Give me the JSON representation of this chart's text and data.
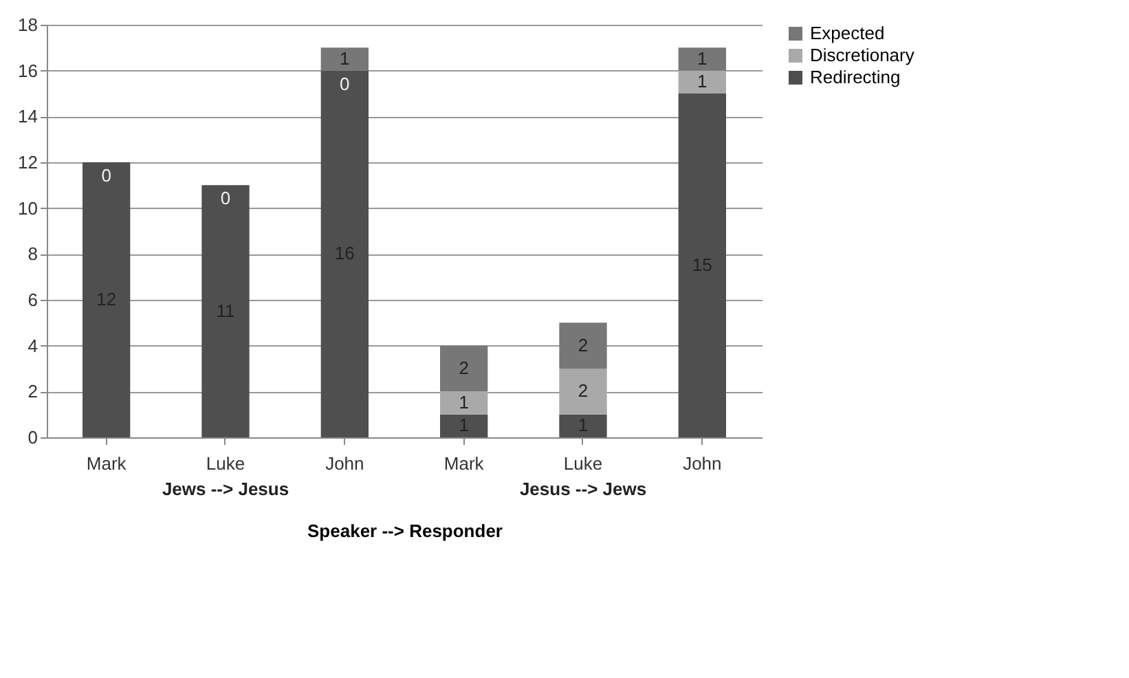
{
  "chart_data": {
    "type": "bar",
    "stacked": true,
    "categories": [
      "Mark",
      "Luke",
      "John",
      "Mark",
      "Luke",
      "John"
    ],
    "xlabel": "Speaker --> Responder",
    "annotations": [
      "Jews --> Jesus",
      "Jesus --> Jews"
    ],
    "series": [
      {
        "name": "Redirecting",
        "color": "#4f4f4f",
        "values": [
          12,
          11,
          16,
          1,
          1,
          15
        ],
        "value_labels": [
          "12",
          "11",
          "16",
          "1",
          "1",
          "15"
        ]
      },
      {
        "name": "Discretionary",
        "color": "#a9a9a9",
        "values": [
          0,
          0,
          0,
          1,
          2,
          1
        ],
        "value_labels": [
          "0",
          "0",
          "0",
          "1",
          "2",
          "1"
        ]
      },
      {
        "name": "Expected",
        "color": "#777777",
        "values": [
          0,
          0,
          1,
          2,
          2,
          1
        ],
        "value_labels": [
          null,
          null,
          "1",
          "2",
          "2",
          "1"
        ]
      }
    ],
    "ylim": [
      0,
      18
    ],
    "yticks": [
      0,
      2,
      4,
      6,
      8,
      10,
      12,
      14,
      16,
      18
    ],
    "grid": "y",
    "legend": "right"
  }
}
